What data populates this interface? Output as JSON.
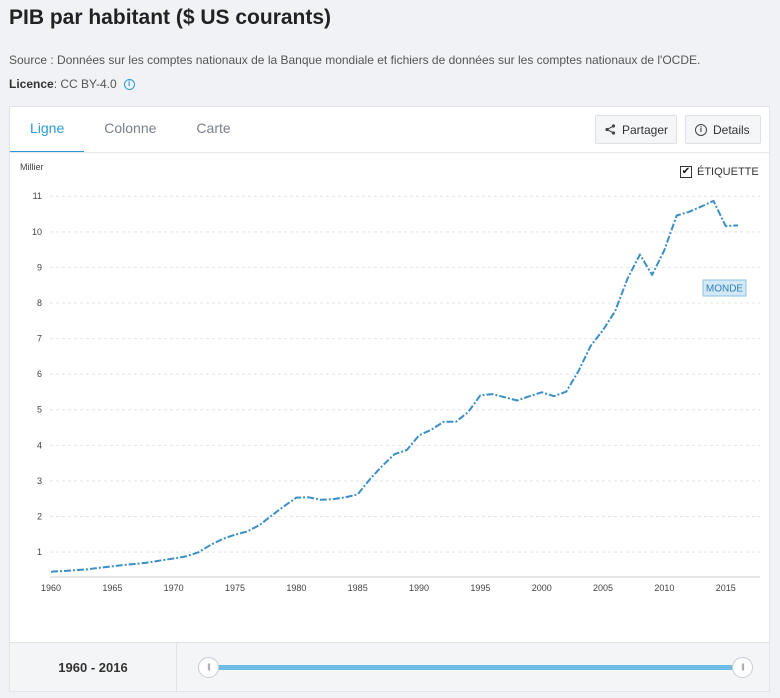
{
  "header": {
    "title": "PIB par habitant ($ US courants)",
    "source": "Source : Données sur les comptes nationaux de la Banque mondiale et fichiers de données sur les comptes nationaux de l'OCDE.",
    "license_label": "Licence",
    "license_value": " : CC BY-4.0",
    "info_icon": "info-icon"
  },
  "tabs": [
    {
      "label": "Ligne",
      "active": true
    },
    {
      "label": "Colonne",
      "active": false
    },
    {
      "label": "Carte",
      "active": false
    }
  ],
  "toolbar": {
    "share_label": "Partager",
    "share_icon": "share-icon",
    "details_label": "Details",
    "details_icon": "info-icon"
  },
  "label_toggle": {
    "label": "ÉTIQUETTE",
    "checked": true
  },
  "chart_data": {
    "type": "line",
    "unit_label": "Millier",
    "x": [
      1960,
      1961,
      1962,
      1963,
      1964,
      1965,
      1966,
      1967,
      1968,
      1969,
      1970,
      1971,
      1972,
      1973,
      1974,
      1975,
      1976,
      1977,
      1978,
      1979,
      1980,
      1981,
      1982,
      1983,
      1984,
      1985,
      1986,
      1987,
      1988,
      1989,
      1990,
      1991,
      1992,
      1993,
      1994,
      1995,
      1996,
      1997,
      1998,
      1999,
      2000,
      2001,
      2002,
      2003,
      2004,
      2005,
      2006,
      2007,
      2008,
      2009,
      2010,
      2011,
      2012,
      2013,
      2014,
      2015,
      2016
    ],
    "series": [
      {
        "name": "MONDE",
        "color": "#3b8fc4",
        "values": [
          0.45,
          0.47,
          0.49,
          0.52,
          0.56,
          0.6,
          0.64,
          0.67,
          0.71,
          0.77,
          0.82,
          0.88,
          0.99,
          1.2,
          1.37,
          1.49,
          1.58,
          1.76,
          2.03,
          2.29,
          2.53,
          2.54,
          2.47,
          2.49,
          2.54,
          2.62,
          3.05,
          3.42,
          3.75,
          3.87,
          4.28,
          4.44,
          4.66,
          4.66,
          4.93,
          5.41,
          5.44,
          5.35,
          5.26,
          5.38,
          5.49,
          5.38,
          5.51,
          6.09,
          6.8,
          7.24,
          7.78,
          8.69,
          9.36,
          8.79,
          9.49,
          10.46,
          10.56,
          10.71,
          10.87,
          10.16,
          10.18
        ]
      }
    ],
    "x_ticks": [
      1960,
      1965,
      1970,
      1975,
      1980,
      1985,
      1990,
      1995,
      2000,
      2005,
      2010,
      2015
    ],
    "y_ticks": [
      1,
      2,
      3,
      4,
      5,
      6,
      7,
      8,
      9,
      10,
      11
    ],
    "xlim": [
      1960,
      2016
    ],
    "ylim": [
      0.3,
      11.4
    ],
    "grid": "horizontal dashed",
    "series_label": "MONDE"
  },
  "footer": {
    "year_range": "1960 - 2016",
    "slider_handle_glyph": "|||"
  }
}
